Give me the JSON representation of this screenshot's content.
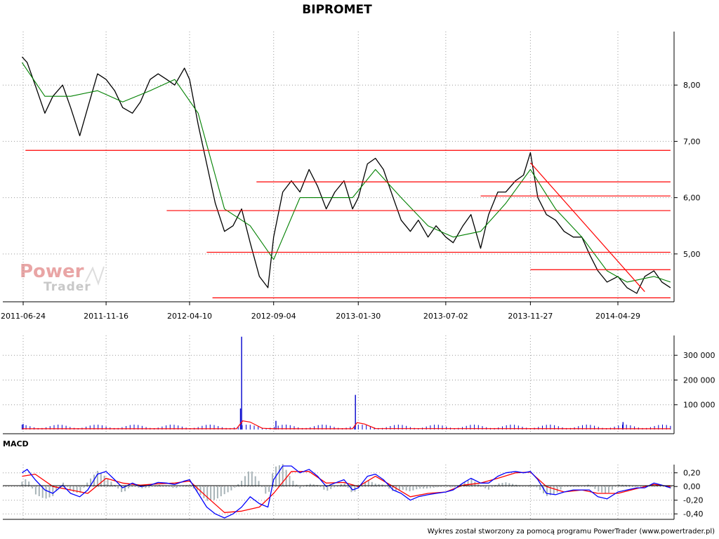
{
  "chart_data": [
    {
      "type": "line",
      "panel": "price",
      "title": "BIPROMET",
      "x_ticks": [
        "2011-06-24",
        "2011-11-16",
        "2012-04-10",
        "2012-09-04",
        "2013-01-30",
        "2013-07-02",
        "2013-11-27",
        "2014-04-29"
      ],
      "y_ticks": [
        "5,00",
        "6,00",
        "7,00",
        "8,00"
      ],
      "ylim": [
        4.15,
        8.95
      ],
      "grid": true,
      "series": [
        {
          "name": "",
          "color": "#000000",
          "x": [
            "2011-06-22",
            "2011-07-01",
            "2011-07-15",
            "2011-08-01",
            "2011-08-15",
            "2011-09-01",
            "2011-09-15",
            "2011-10-01",
            "2011-10-15",
            "2011-11-01",
            "2011-11-16",
            "2011-12-01",
            "2011-12-15",
            "2012-01-01",
            "2012-01-15",
            "2012-02-01",
            "2012-02-15",
            "2012-03-01",
            "2012-03-15",
            "2012-04-01",
            "2012-04-10",
            "2012-04-25",
            "2012-05-10",
            "2012-05-25",
            "2012-06-10",
            "2012-06-25",
            "2012-07-10",
            "2012-07-25",
            "2012-08-10",
            "2012-08-25",
            "2012-09-04",
            "2012-09-20",
            "2012-10-05",
            "2012-10-20",
            "2012-11-05",
            "2012-11-20",
            "2012-12-05",
            "2012-12-20",
            "2013-01-05",
            "2013-01-20",
            "2013-01-30",
            "2013-02-15",
            "2013-03-01",
            "2013-03-15",
            "2013-04-01",
            "2013-04-15",
            "2013-05-01",
            "2013-05-15",
            "2013-06-01",
            "2013-06-15",
            "2013-07-02",
            "2013-07-15",
            "2013-08-01",
            "2013-08-15",
            "2013-09-01",
            "2013-09-15",
            "2013-10-01",
            "2013-10-15",
            "2013-11-01",
            "2013-11-15",
            "2013-11-27",
            "2013-12-10",
            "2013-12-25",
            "2014-01-10",
            "2014-01-25",
            "2014-02-10",
            "2014-02-25",
            "2014-03-10",
            "2014-03-25",
            "2014-04-10",
            "2014-04-29",
            "2014-05-15",
            "2014-06-01",
            "2014-06-15",
            "2014-07-01",
            "2014-07-15",
            "2014-07-30"
          ],
          "values": [
            8.5,
            8.4,
            8.0,
            7.5,
            7.8,
            8.0,
            7.6,
            7.1,
            7.6,
            8.2,
            8.1,
            7.9,
            7.6,
            7.5,
            7.7,
            8.1,
            8.2,
            8.1,
            8.0,
            8.3,
            8.1,
            7.3,
            6.6,
            5.9,
            5.4,
            5.5,
            5.8,
            5.2,
            4.6,
            4.4,
            5.3,
            6.1,
            6.3,
            6.1,
            6.5,
            6.2,
            5.8,
            6.1,
            6.3,
            5.8,
            6.0,
            6.6,
            6.7,
            6.5,
            6.0,
            5.6,
            5.4,
            5.6,
            5.3,
            5.5,
            5.3,
            5.2,
            5.5,
            5.7,
            5.1,
            5.7,
            6.1,
            6.1,
            6.3,
            6.4,
            6.8,
            6.0,
            5.7,
            5.6,
            5.4,
            5.3,
            5.3,
            5.0,
            4.7,
            4.5,
            4.6,
            4.4,
            4.3,
            4.6,
            4.7,
            4.5,
            4.4
          ]
        },
        {
          "name": "",
          "color": "#008000",
          "x": [
            "2011-06-22",
            "2011-08-01",
            "2011-09-15",
            "2011-11-01",
            "2011-12-15",
            "2012-02-01",
            "2012-03-15",
            "2012-04-25",
            "2012-06-10",
            "2012-07-25",
            "2012-09-04",
            "2012-10-20",
            "2012-12-05",
            "2013-01-20",
            "2013-03-01",
            "2013-04-15",
            "2013-06-01",
            "2013-07-15",
            "2013-09-01",
            "2013-10-15",
            "2013-11-27",
            "2014-01-10",
            "2014-02-25",
            "2014-04-10",
            "2014-05-15",
            "2014-07-01",
            "2014-07-30"
          ],
          "values": [
            8.4,
            7.8,
            7.8,
            7.9,
            7.7,
            7.9,
            8.1,
            7.5,
            5.8,
            5.5,
            4.9,
            6.0,
            6.0,
            6.0,
            6.5,
            6.0,
            5.5,
            5.3,
            5.4,
            5.9,
            6.5,
            5.8,
            5.3,
            4.7,
            4.5,
            4.6,
            4.5
          ]
        }
      ],
      "support_resistance_levels": [
        4.22,
        5.03,
        5.77,
        6.03,
        6.28,
        6.84
      ],
      "trendline": {
        "from": [
          "2013-11-27",
          6.62
        ],
        "to": [
          "2014-06-15",
          4.33
        ]
      },
      "level_color": "#ff0000",
      "watermark": {
        "power": "Power",
        "trader": "Trader"
      }
    },
    {
      "type": "bar",
      "panel": "volume",
      "y_ticks": [
        "100 000",
        "200 000",
        "300 000"
      ],
      "ylim": [
        0,
        380000
      ],
      "bar_color": "#0000cc",
      "ma_color": "#ff0000",
      "spikes": [
        {
          "x": "2012-07-10",
          "value": 375000
        },
        {
          "x": "2012-07-08",
          "value": 85000
        },
        {
          "x": "2013-01-25",
          "value": 140000
        },
        {
          "x": "2011-06-24",
          "value": 22000
        },
        {
          "x": "2012-09-08",
          "value": 35000
        },
        {
          "x": "2014-05-08",
          "value": 30000
        }
      ],
      "series": [
        {
          "name": "",
          "color": "#ff0000",
          "x": [
            "2011-06-22",
            "2011-09-01",
            "2012-07-01",
            "2012-07-12",
            "2012-07-25",
            "2012-08-15",
            "2012-09-04",
            "2013-01-20",
            "2013-01-28",
            "2013-02-10",
            "2013-03-01",
            "2014-07-30"
          ],
          "values": [
            3000,
            3000,
            3000,
            35000,
            30000,
            5000,
            3000,
            3000,
            28000,
            22000,
            4000,
            3000
          ]
        }
      ]
    },
    {
      "type": "line",
      "panel": "macd",
      "title": "MACD",
      "y_ticks": [
        "0,20",
        "0,00",
        "-0,20",
        "-0,40"
      ],
      "ylim": [
        -0.48,
        0.32
      ],
      "series": [
        {
          "name": "",
          "color": "#0000ff",
          "x": [
            "2011-06-22",
            "2011-07-01",
            "2011-07-15",
            "2011-08-01",
            "2011-08-15",
            "2011-09-01",
            "2011-09-15",
            "2011-10-01",
            "2011-10-15",
            "2011-11-01",
            "2011-11-16",
            "2011-12-01",
            "2011-12-15",
            "2012-01-01",
            "2012-01-15",
            "2012-02-01",
            "2012-02-15",
            "2012-03-01",
            "2012-03-15",
            "2012-04-01",
            "2012-04-10",
            "2012-04-25",
            "2012-05-10",
            "2012-05-25",
            "2012-06-10",
            "2012-06-25",
            "2012-07-10",
            "2012-07-25",
            "2012-08-10",
            "2012-08-25",
            "2012-09-04",
            "2012-09-20",
            "2012-10-05",
            "2012-10-20",
            "2012-11-05",
            "2012-11-20",
            "2012-12-05",
            "2012-12-20",
            "2013-01-05",
            "2013-01-20",
            "2013-01-30",
            "2013-02-15",
            "2013-03-01",
            "2013-03-15",
            "2013-04-01",
            "2013-04-15",
            "2013-05-01",
            "2013-05-15",
            "2013-06-01",
            "2013-06-15",
            "2013-07-02",
            "2013-07-15",
            "2013-08-01",
            "2013-08-15",
            "2013-09-01",
            "2013-09-15",
            "2013-10-01",
            "2013-10-15",
            "2013-11-01",
            "2013-11-15",
            "2013-11-27",
            "2013-12-10",
            "2013-12-25",
            "2014-01-10",
            "2014-01-25",
            "2014-02-10",
            "2014-02-25",
            "2014-03-10",
            "2014-03-25",
            "2014-04-10",
            "2014-04-29",
            "2014-05-15",
            "2014-06-01",
            "2014-06-15",
            "2014-07-01",
            "2014-07-15",
            "2014-07-30"
          ],
          "values": [
            0.2,
            0.25,
            0.1,
            -0.05,
            -0.1,
            0.02,
            -0.1,
            -0.15,
            -0.05,
            0.18,
            0.22,
            0.1,
            -0.02,
            0.05,
            0.0,
            0.02,
            0.06,
            0.05,
            0.03,
            0.08,
            0.1,
            -0.1,
            -0.3,
            -0.4,
            -0.46,
            -0.4,
            -0.3,
            -0.15,
            -0.25,
            -0.3,
            0.1,
            0.3,
            0.3,
            0.2,
            0.25,
            0.15,
            0.0,
            0.05,
            0.1,
            -0.05,
            -0.02,
            0.15,
            0.18,
            0.1,
            -0.05,
            -0.1,
            -0.2,
            -0.15,
            -0.12,
            -0.1,
            -0.08,
            -0.05,
            0.05,
            0.12,
            0.05,
            0.05,
            0.15,
            0.2,
            0.22,
            0.2,
            0.22,
            0.1,
            -0.1,
            -0.12,
            -0.08,
            -0.05,
            -0.05,
            -0.05,
            -0.15,
            -0.18,
            -0.08,
            -0.05,
            -0.02,
            -0.02,
            0.05,
            0.02,
            -0.02
          ]
        },
        {
          "name": "",
          "color": "#ff0000",
          "x": [
            "2011-06-22",
            "2011-07-15",
            "2011-08-15",
            "2011-09-15",
            "2011-10-15",
            "2011-11-16",
            "2011-12-15",
            "2012-01-15",
            "2012-02-15",
            "2012-03-15",
            "2012-04-10",
            "2012-05-10",
            "2012-06-10",
            "2012-07-10",
            "2012-08-10",
            "2012-09-04",
            "2012-10-05",
            "2012-11-05",
            "2012-12-05",
            "2013-01-05",
            "2013-01-30",
            "2013-03-01",
            "2013-04-01",
            "2013-05-01",
            "2013-06-01",
            "2013-07-02",
            "2013-08-01",
            "2013-09-01",
            "2013-10-01",
            "2013-11-01",
            "2013-11-27",
            "2013-12-25",
            "2014-01-25",
            "2014-02-25",
            "2014-03-25",
            "2014-04-29",
            "2014-06-01",
            "2014-07-01",
            "2014-07-30"
          ],
          "values": [
            0.15,
            0.18,
            0.0,
            -0.05,
            -0.1,
            0.12,
            0.05,
            0.02,
            0.04,
            0.05,
            0.08,
            -0.15,
            -0.38,
            -0.36,
            -0.3,
            -0.1,
            0.22,
            0.22,
            0.05,
            0.06,
            0.0,
            0.15,
            0.0,
            -0.15,
            -0.1,
            -0.08,
            0.02,
            0.05,
            0.12,
            0.2,
            0.21,
            0.0,
            -0.08,
            -0.05,
            -0.1,
            -0.1,
            -0.03,
            0.03,
            0.0
          ]
        }
      ]
    }
  ],
  "footer": "Wykres został stworzony za pomocą programu PowerTrader (www.powertrader.pl)"
}
